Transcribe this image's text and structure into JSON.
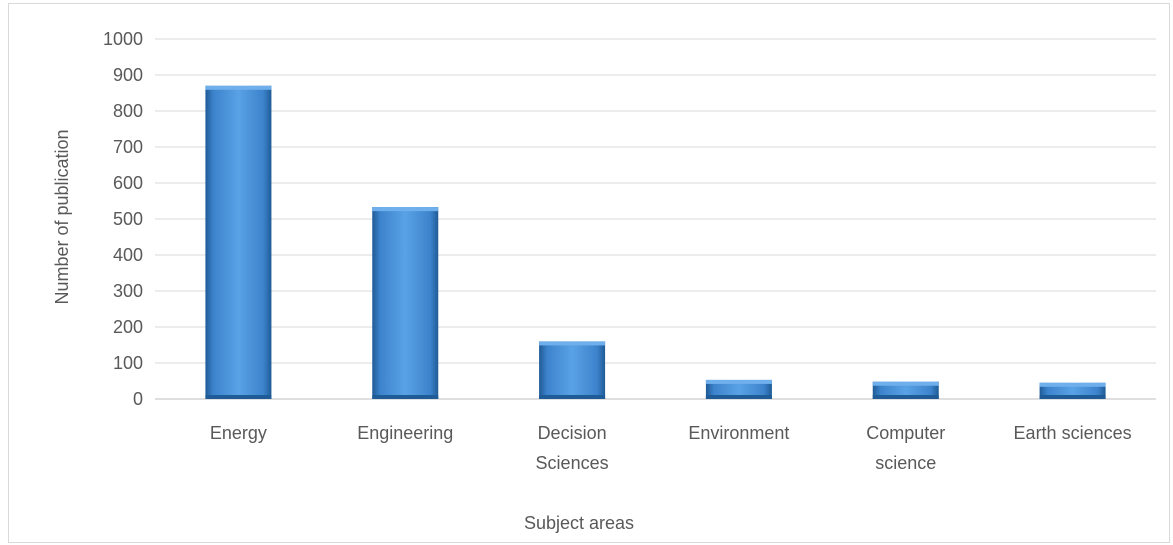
{
  "chart_data": {
    "type": "bar",
    "title": "",
    "xlabel": "Subject areas",
    "ylabel": "Number of publication",
    "categories": [
      [
        "Energy"
      ],
      [
        "Engineering"
      ],
      [
        "Decision",
        "Sciences"
      ],
      [
        "Environment"
      ],
      [
        "Computer",
        "science"
      ],
      [
        "Earth sciences"
      ]
    ],
    "values": [
      870,
      533,
      160,
      53,
      48,
      45
    ],
    "ylim": [
      0,
      1000
    ],
    "yticks": [
      "0",
      "100",
      "200",
      "300",
      "400",
      "500",
      "600",
      "700",
      "800",
      "900",
      "1000"
    ],
    "grid": true,
    "legend": "none",
    "colors": {
      "bar": "#4a90d9",
      "bar_dark": "#1f5b96",
      "bar_light": "#6fb0ec",
      "grid": "#d9d9d9",
      "axis": "#bfbfbf"
    }
  }
}
